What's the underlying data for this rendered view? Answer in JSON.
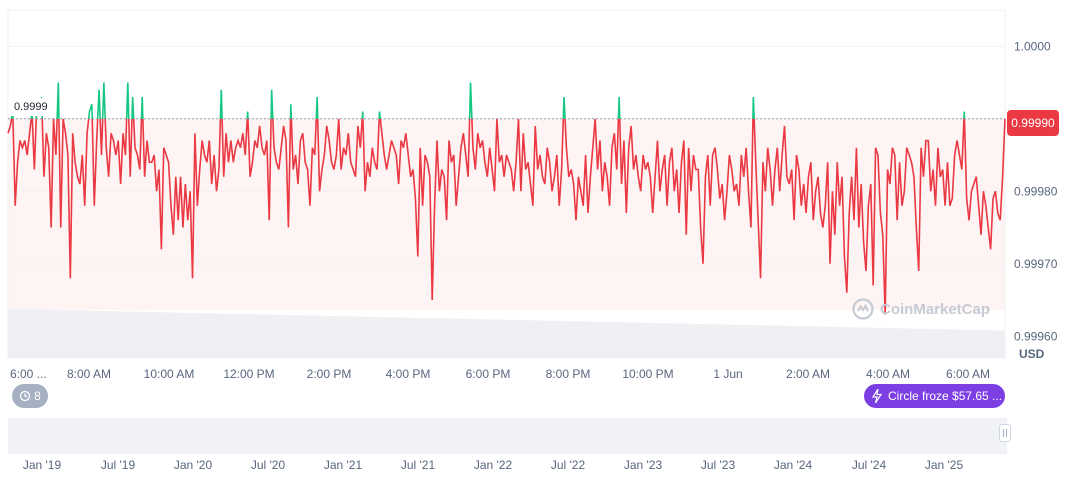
{
  "chart_data": {
    "type": "line",
    "title": "",
    "y_axis": {
      "ticks": [
        "1.0000",
        "0.99990",
        "0.99980",
        "0.99970",
        "0.99960"
      ],
      "tick_values": [
        1.0,
        0.9999,
        0.9998,
        0.9997,
        0.9996
      ],
      "unit": "USD",
      "ylim": [
        0.99957,
        1.00005
      ]
    },
    "x_axis": {
      "ticks": [
        "6:00 ...",
        "8:00 AM",
        "10:00 AM",
        "12:00 PM",
        "2:00 PM",
        "4:00 PM",
        "6:00 PM",
        "8:00 PM",
        "10:00 PM",
        "1 Jun",
        "2:00 AM",
        "4:00 AM",
        "6:00 AM"
      ]
    },
    "reference_line": {
      "value": 0.9999,
      "label": "0.9999"
    },
    "current_price": {
      "value": 0.9999,
      "label": "0.99990"
    },
    "series": [
      {
        "color_above": "#16c784",
        "color_below": "#ea3943",
        "values": [
          0.99988,
          0.99989,
          0.99991,
          0.99978,
          0.99984,
          0.99987,
          0.99986,
          0.99987,
          0.99985,
          0.99988,
          0.99991,
          0.99983,
          0.99992,
          0.99991,
          0.99993,
          0.99982,
          0.99988,
          0.99986,
          0.99975,
          0.9999,
          0.99985,
          0.99995,
          0.99975,
          0.9999,
          0.99988,
          0.99985,
          0.99968,
          0.99988,
          0.99984,
          0.99982,
          0.99981,
          0.99985,
          0.99978,
          0.99988,
          0.99991,
          0.99992,
          0.99978,
          0.99987,
          0.99994,
          0.99985,
          0.99995,
          0.99986,
          0.99982,
          0.99988,
          0.99987,
          0.99985,
          0.99987,
          0.99981,
          0.99988,
          0.99985,
          0.99995,
          0.99982,
          0.99993,
          0.99986,
          0.99985,
          0.99983,
          0.99993,
          0.99982,
          0.99987,
          0.99984,
          0.99984,
          0.99985,
          0.9998,
          0.99983,
          0.99972,
          0.99986,
          0.99985,
          0.99984,
          0.99978,
          0.99974,
          0.99982,
          0.99976,
          0.99982,
          0.99975,
          0.99981,
          0.99976,
          0.9998,
          0.99968,
          0.99988,
          0.99978,
          0.99983,
          0.99987,
          0.99985,
          0.99984,
          0.99987,
          0.99981,
          0.99985,
          0.9998,
          0.99983,
          0.99994,
          0.99982,
          0.99988,
          0.99984,
          0.99987,
          0.99984,
          0.99986,
          0.99987,
          0.99986,
          0.99988,
          0.99985,
          0.99991,
          0.99982,
          0.99984,
          0.99987,
          0.99986,
          0.99989,
          0.99986,
          0.99985,
          0.99987,
          0.99976,
          0.99994,
          0.99986,
          0.99984,
          0.99983,
          0.99986,
          0.99989,
          0.99987,
          0.99975,
          0.99992,
          0.99983,
          0.99985,
          0.99981,
          0.99987,
          0.99988,
          0.99984,
          0.99983,
          0.99978,
          0.99986,
          0.99985,
          0.99993,
          0.9998,
          0.99983,
          0.99985,
          0.99989,
          0.99987,
          0.99984,
          0.99983,
          0.99985,
          0.9999,
          0.99983,
          0.99986,
          0.99985,
          0.99988,
          0.99984,
          0.99983,
          0.99982,
          0.99989,
          0.99986,
          0.99991,
          0.9998,
          0.99984,
          0.99982,
          0.99986,
          0.99984,
          0.99983,
          0.99991,
          0.99988,
          0.99985,
          0.99983,
          0.99985,
          0.99987,
          0.99986,
          0.99985,
          0.99981,
          0.99987,
          0.99986,
          0.99988,
          0.99985,
          0.99982,
          0.99983,
          0.99979,
          0.99971,
          0.99986,
          0.99978,
          0.99985,
          0.99984,
          0.99982,
          0.99965,
          0.99978,
          0.99987,
          0.9998,
          0.99983,
          0.99982,
          0.99976,
          0.99987,
          0.99984,
          0.99985,
          0.99978,
          0.99982,
          0.99986,
          0.99988,
          0.99985,
          0.99982,
          0.99995,
          0.99986,
          0.99983,
          0.99988,
          0.99986,
          0.99987,
          0.99984,
          0.99982,
          0.99986,
          0.99983,
          0.9998,
          0.9999,
          0.99984,
          0.99985,
          0.99982,
          0.99985,
          0.99984,
          0.99983,
          0.9998,
          0.99984,
          0.9999,
          0.9998,
          0.99988,
          0.99983,
          0.99984,
          0.99981,
          0.99978,
          0.99989,
          0.99983,
          0.99985,
          0.99982,
          0.99981,
          0.99986,
          0.99984,
          0.9998,
          0.99982,
          0.99985,
          0.99978,
          0.99983,
          0.99993,
          0.99986,
          0.99982,
          0.99983,
          0.99981,
          0.99976,
          0.99982,
          0.9998,
          0.99978,
          0.99985,
          0.99977,
          0.99982,
          0.99986,
          0.9999,
          0.99983,
          0.99987,
          0.9998,
          0.99984,
          0.99982,
          0.99978,
          0.99986,
          0.99988,
          0.99983,
          0.99993,
          0.99981,
          0.99987,
          0.99977,
          0.99986,
          0.99989,
          0.99983,
          0.99985,
          0.99982,
          0.9998,
          0.99985,
          0.99983,
          0.99984,
          0.99982,
          0.99977,
          0.99982,
          0.99987,
          0.9998,
          0.99983,
          0.99985,
          0.99978,
          0.99984,
          0.99986,
          0.9998,
          0.99983,
          0.99977,
          0.99984,
          0.99987,
          0.99974,
          0.99986,
          0.9998,
          0.99985,
          0.99983,
          0.99983,
          0.99975,
          0.9997,
          0.99982,
          0.99985,
          0.99978,
          0.99985,
          0.99986,
          0.99983,
          0.99979,
          0.99981,
          0.99976,
          0.9998,
          0.99985,
          0.99983,
          0.9998,
          0.99981,
          0.99978,
          0.99985,
          0.99982,
          0.99986,
          0.9998,
          0.99975,
          0.99993,
          0.99984,
          0.99976,
          0.99968,
          0.99984,
          0.9998,
          0.99986,
          0.99983,
          0.99978,
          0.99983,
          0.99986,
          0.9998,
          0.99985,
          0.99989,
          0.99982,
          0.99981,
          0.99983,
          0.99976,
          0.99985,
          0.99983,
          0.99978,
          0.99981,
          0.99977,
          0.99982,
          0.99984,
          0.99976,
          0.9998,
          0.99982,
          0.99977,
          0.99975,
          0.99978,
          0.99984,
          0.9997,
          0.9998,
          0.99974,
          0.99984,
          0.99978,
          0.99982,
          0.99971,
          0.99966,
          0.99977,
          0.99982,
          0.99976,
          0.99986,
          0.99975,
          0.99981,
          0.99973,
          0.99969,
          0.99978,
          0.99981,
          0.99967,
          0.99986,
          0.99985,
          0.99977,
          0.99974,
          0.99963,
          0.99983,
          0.99981,
          0.99986,
          0.99985,
          0.99976,
          0.99984,
          0.99978,
          0.9998,
          0.99986,
          0.99985,
          0.99984,
          0.99982,
          0.99975,
          0.99969,
          0.99986,
          0.99982,
          0.99987,
          0.99987,
          0.9998,
          0.99983,
          0.99978,
          0.99986,
          0.99982,
          0.99983,
          0.99978,
          0.99984,
          0.99978,
          0.99979,
          0.99985,
          0.99987,
          0.99985,
          0.99983,
          0.99991,
          0.99979,
          0.99976,
          0.9998,
          0.99981,
          0.99982,
          0.99978,
          0.99974,
          0.9998,
          0.99978,
          0.99975,
          0.99972,
          0.99979,
          0.9998,
          0.99977,
          0.99976,
          0.99982,
          0.9999
        ]
      }
    ],
    "volume": {
      "start": 0.98,
      "end": 0.55
    },
    "grid": true,
    "navigator": {
      "ticks": [
        "Jan '19",
        "Jul '19",
        "Jan '20",
        "Jul '20",
        "Jan '21",
        "Jul '21",
        "Jan '22",
        "Jul '22",
        "Jan '23",
        "Jul '23",
        "Jan '24",
        "Jul '24",
        "Jan '25"
      ]
    }
  },
  "usd_label": "USD",
  "history_badge": {
    "count": "8",
    "icon": "history-icon"
  },
  "event_badge": {
    "label": "Circle froze $57.65 ...",
    "icon": "lightning-icon"
  },
  "watermark": {
    "text": "CoinMarketCap",
    "icon": "coinmarketcap-logo-icon"
  },
  "colors": {
    "up": "#16c784",
    "down": "#ea3943",
    "event": "#7b3fe4"
  }
}
